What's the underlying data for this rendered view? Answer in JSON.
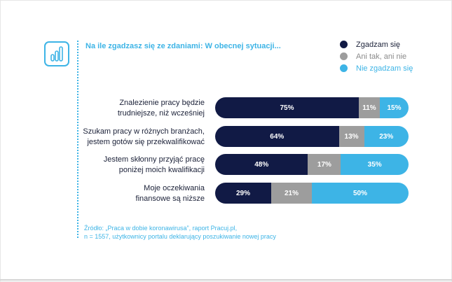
{
  "header": {
    "title": "Na ile zgadzasz się ze zdaniami: W obecnej sytuacji..."
  },
  "icon": {
    "name": "bar-chart-icon",
    "color": "#3db4e6"
  },
  "legend": [
    {
      "label": "Zgadzam się",
      "color": "#111a45",
      "text_color": "#1b2138"
    },
    {
      "label": "Ani tak, ani nie",
      "color": "#9d9d9d",
      "text_color": "#8a8a8a"
    },
    {
      "label": "Nie zgadzam się",
      "color": "#3db4e6",
      "text_color": "#3db4e6"
    }
  ],
  "chart_data": {
    "type": "bar",
    "orientation": "horizontal",
    "stacked": true,
    "unit": "%",
    "categories": [
      "Znalezienie pracy będzie trudniejsze, niż wcześniej",
      "Szukam pracy w różnych branżach, jestem gotów się przekwalifikować",
      "Jestem skłonny przyjąć pracę poniżej moich kwalifikacji",
      "Moje oczekiwania finansowe są niższe"
    ],
    "category_lines": [
      [
        "Znalezienie pracy będzie",
        "trudniejsze, niż wcześniej"
      ],
      [
        "Szukam pracy w różnych branżach,",
        "jestem gotów się przekwalifikować"
      ],
      [
        "Jestem skłonny przyjąć pracę",
        "poniżej moich kwalifikacji"
      ],
      [
        "Moje oczekiwania",
        "finansowe są niższe"
      ]
    ],
    "series": [
      {
        "name": "Zgadzam się",
        "values": [
          75,
          64,
          48,
          29
        ],
        "color": "#111a45"
      },
      {
        "name": "Ani tak, ani nie",
        "values": [
          11,
          13,
          17,
          21
        ],
        "color": "#9d9d9d"
      },
      {
        "name": "Nie zgadzam się",
        "values": [
          15,
          23,
          35,
          50
        ],
        "color": "#3db4e6"
      }
    ],
    "legend_position": "top-right",
    "grid": false
  },
  "source": {
    "line1": "Źródło: „Praca w dobie koronawirusa”, raport Pracuj.pl,",
    "line2": "n = 1557, użytkownicy portalu deklarujący poszukiwanie nowej pracy"
  }
}
